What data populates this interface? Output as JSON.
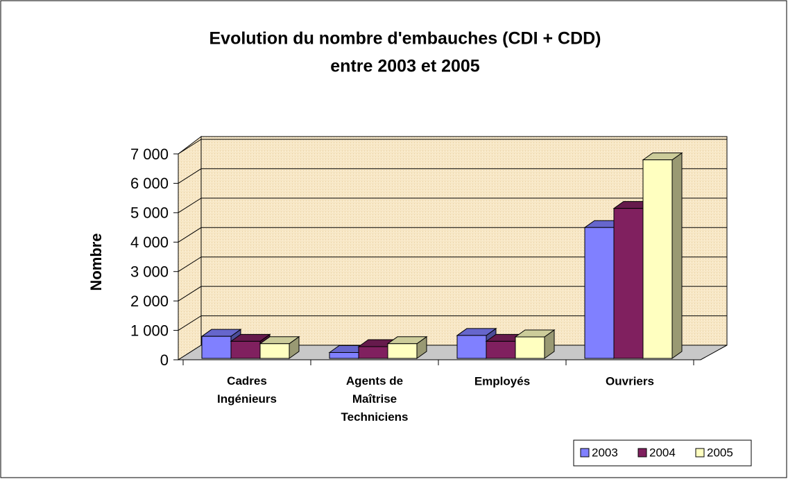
{
  "chart_data": {
    "type": "bar3d",
    "title": [
      "Evolution du nombre d'embauches (CDI + CDD)",
      "entre 2003 et 2005"
    ],
    "ylabel": "Nombre",
    "categories": [
      "Cadres\nIngénieurs",
      "Agents de\nMaîtrise\nTechniciens",
      "Employés",
      "Ouvriers"
    ],
    "series": [
      {
        "name": "2003",
        "color": "#8080ff",
        "values": [
          750,
          200,
          780,
          4450
        ]
      },
      {
        "name": "2004",
        "color": "#80205f",
        "values": [
          580,
          400,
          580,
          5100
        ]
      },
      {
        "name": "2005",
        "color": "#ffffc0",
        "values": [
          500,
          500,
          730,
          6750
        ]
      }
    ],
    "ylim": [
      0,
      7000
    ],
    "yticks": [
      0,
      {
        "value": 1000,
        "label": "1 000"
      },
      {
        "value": 2000,
        "label": "2 000"
      },
      {
        "value": 3000,
        "label": "3 000"
      },
      {
        "value": 4000,
        "label": "4 000"
      },
      {
        "value": 5000,
        "label": "5 000"
      },
      {
        "value": 6000,
        "label": "6 000"
      },
      {
        "value": 7000,
        "label": "7 000"
      }
    ],
    "grid": true,
    "legend": "bottom-right"
  }
}
